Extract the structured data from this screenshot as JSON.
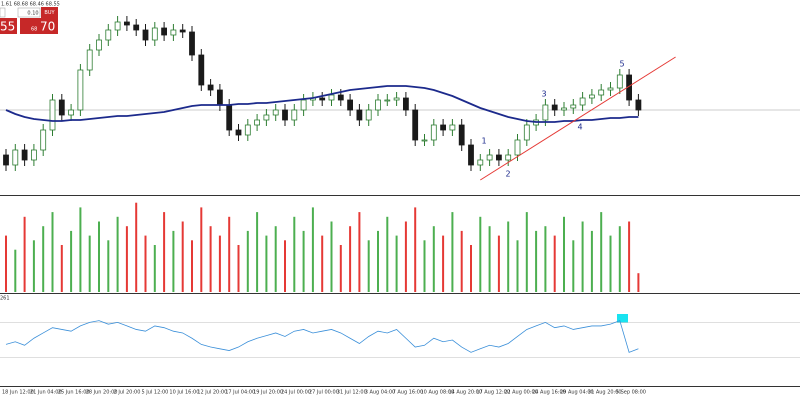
{
  "toolbar": {
    "quote": "1.61 68.68 68.46 68.55",
    "lot": "0.10",
    "buy": "BUY",
    "sell_price": "55",
    "buy_prefix": "68",
    "buy_price": "70"
  },
  "chart_data": [
    {
      "type": "candlestick",
      "categories": [
        "18 Jun 12:00",
        null,
        null,
        "21 Jun 04:00",
        null,
        null,
        "25 Jun 16:00",
        null,
        null,
        "28 Jun 20:00",
        null,
        null,
        "2 Jul 20:00",
        null,
        null,
        "5 Jul 12:00",
        null,
        null,
        "10 Jul 16:00",
        null,
        null,
        "12 Jul 20:00",
        null,
        null,
        "17 Jul 04:00",
        null,
        null,
        "19 Jul 20:00",
        null,
        null,
        "24 Jul 00:00",
        null,
        null,
        "27 Jul 00:00",
        null,
        null,
        "31 Jul 12:00",
        null,
        null,
        "3 Aug 04:00",
        null,
        null,
        "7 Aug 16:00",
        null,
        null,
        "10 Aug 08:00",
        null,
        null,
        "14 Aug 20:00",
        null,
        null,
        "17 Aug 12:00",
        null,
        null,
        "22 Aug 00:00",
        null,
        null,
        "24 Aug 16:00",
        null,
        null,
        "29 Aug 04:00",
        null,
        null,
        "31 Aug 20:00",
        null,
        null,
        "5 Sep 08:00",
        null,
        null
      ],
      "open": [
        68.1,
        68.0,
        68.15,
        68.05,
        68.15,
        68.35,
        68.65,
        68.5,
        68.55,
        68.95,
        69.15,
        69.25,
        69.35,
        69.43,
        69.4,
        69.35,
        69.25,
        69.37,
        69.3,
        69.35,
        69.33,
        69.1,
        68.8,
        68.75,
        68.6,
        68.35,
        68.3,
        68.4,
        68.45,
        68.5,
        68.55,
        68.45,
        68.55,
        68.65,
        68.67,
        68.65,
        68.7,
        68.65,
        68.55,
        68.45,
        68.55,
        68.65,
        68.65,
        68.67,
        68.55,
        68.25,
        68.25,
        68.4,
        68.35,
        68.4,
        68.2,
        68.0,
        68.05,
        68.1,
        68.05,
        68.1,
        68.25,
        68.4,
        68.45,
        68.6,
        68.55,
        68.57,
        68.6,
        68.67,
        68.7,
        68.75,
        68.77,
        68.9,
        68.65
      ],
      "high": [
        68.16,
        68.21,
        68.21,
        68.21,
        68.41,
        68.71,
        68.71,
        68.61,
        69.01,
        69.21,
        69.31,
        69.41,
        69.49,
        69.49,
        69.46,
        69.41,
        69.43,
        69.43,
        69.41,
        69.41,
        69.39,
        69.16,
        68.86,
        68.81,
        68.66,
        68.41,
        68.46,
        68.51,
        68.56,
        68.61,
        68.61,
        68.61,
        68.71,
        68.73,
        68.73,
        68.76,
        68.76,
        68.71,
        68.61,
        68.61,
        68.71,
        68.71,
        68.73,
        68.73,
        68.61,
        68.31,
        68.46,
        68.46,
        68.46,
        68.46,
        68.26,
        68.11,
        68.16,
        68.16,
        68.16,
        68.31,
        68.46,
        68.51,
        68.66,
        68.66,
        68.63,
        68.66,
        68.73,
        68.76,
        68.81,
        68.83,
        68.96,
        68.96,
        68.71
      ],
      "low": [
        67.94,
        67.94,
        67.99,
        67.99,
        68.09,
        68.29,
        68.44,
        68.44,
        68.49,
        68.89,
        69.09,
        69.19,
        69.29,
        69.34,
        69.29,
        69.19,
        69.19,
        69.24,
        69.24,
        69.27,
        69.04,
        68.74,
        68.69,
        68.54,
        68.29,
        68.24,
        68.24,
        68.34,
        68.39,
        68.44,
        68.39,
        68.39,
        68.49,
        68.59,
        68.59,
        68.59,
        68.59,
        68.49,
        68.39,
        68.39,
        68.49,
        68.59,
        68.59,
        68.49,
        68.19,
        68.19,
        68.19,
        68.29,
        68.29,
        68.14,
        67.94,
        67.94,
        67.99,
        67.99,
        67.99,
        68.04,
        68.19,
        68.34,
        68.39,
        68.49,
        68.49,
        68.51,
        68.54,
        68.61,
        68.64,
        68.69,
        68.71,
        68.59,
        68.49
      ],
      "close": [
        68.0,
        68.15,
        68.05,
        68.15,
        68.35,
        68.65,
        68.5,
        68.55,
        68.95,
        69.15,
        69.25,
        69.35,
        69.43,
        69.4,
        69.35,
        69.25,
        69.37,
        69.3,
        69.35,
        69.33,
        69.1,
        68.8,
        68.75,
        68.6,
        68.35,
        68.3,
        68.4,
        68.45,
        68.5,
        68.55,
        68.45,
        68.55,
        68.65,
        68.67,
        68.65,
        68.7,
        68.65,
        68.55,
        68.45,
        68.55,
        68.65,
        68.65,
        68.67,
        68.55,
        68.25,
        68.25,
        68.4,
        68.35,
        68.4,
        68.2,
        68.0,
        68.05,
        68.1,
        68.05,
        68.1,
        68.25,
        68.4,
        68.45,
        68.6,
        68.55,
        68.57,
        68.6,
        68.67,
        68.7,
        68.75,
        68.77,
        68.9,
        68.65,
        68.55
      ],
      "up_color": "#2e7d32",
      "down_color": "#1a1a1a",
      "moving_average": {
        "color": "#1c2a8c",
        "values": [
          68.55,
          68.51,
          68.48,
          68.46,
          68.45,
          68.44,
          68.44,
          68.45,
          68.45,
          68.46,
          68.47,
          68.48,
          68.49,
          68.49,
          68.5,
          68.51,
          68.52,
          68.53,
          68.55,
          68.57,
          68.59,
          68.6,
          68.6,
          68.6,
          68.6,
          68.61,
          68.61,
          68.62,
          68.62,
          68.63,
          68.64,
          68.65,
          68.66,
          68.67,
          68.69,
          68.71,
          68.73,
          68.75,
          68.76,
          68.77,
          68.78,
          68.79,
          68.79,
          68.79,
          68.78,
          68.77,
          68.75,
          68.72,
          68.69,
          68.65,
          68.61,
          68.57,
          68.54,
          68.51,
          68.48,
          68.46,
          68.44,
          68.43,
          68.43,
          68.43,
          68.44,
          68.44,
          68.45,
          68.45,
          68.46,
          68.47,
          68.47,
          68.48,
          68.48
        ]
      },
      "trendline": {
        "color": "#e53935",
        "x": [
          51,
          72
        ],
        "y": [
          67.85,
          69.08
        ]
      },
      "annotations": [
        "1",
        "2",
        "3",
        "4",
        "5"
      ],
      "price_line": 68.55,
      "ylim": [
        67.7,
        69.65
      ]
    },
    {
      "type": "bar",
      "values": [
        60,
        45,
        80,
        55,
        70,
        85,
        50,
        65,
        90,
        60,
        75,
        55,
        80,
        70,
        95,
        60,
        50,
        85,
        65,
        75,
        55,
        90,
        70,
        60,
        80,
        50,
        65,
        85,
        60,
        70,
        55,
        80,
        65,
        90,
        60,
        75,
        50,
        70,
        85,
        55,
        65,
        80,
        60,
        75,
        90,
        55,
        70,
        60,
        85,
        65,
        50,
        80,
        70,
        60,
        75,
        55,
        85,
        65,
        70,
        60,
        80,
        55,
        75,
        65,
        85,
        60,
        70,
        75,
        20
      ],
      "up_color": "#4caf50",
      "down_color": "#e53935",
      "ylim": [
        0,
        100
      ]
    },
    {
      "type": "line",
      "label": "261",
      "values": [
        45,
        48,
        44,
        52,
        58,
        64,
        62,
        60,
        66,
        70,
        72,
        68,
        70,
        66,
        62,
        60,
        66,
        64,
        60,
        58,
        52,
        45,
        42,
        40,
        38,
        42,
        48,
        52,
        55,
        58,
        54,
        60,
        62,
        58,
        60,
        62,
        58,
        52,
        46,
        54,
        60,
        58,
        62,
        52,
        42,
        44,
        52,
        48,
        50,
        42,
        36,
        40,
        44,
        42,
        46,
        54,
        62,
        66,
        70,
        64,
        66,
        62,
        64,
        66,
        66,
        68,
        72,
        36,
        40
      ],
      "color": "#3a8fd9",
      "levels": [
        70,
        30
      ],
      "ylim": [
        0,
        100
      ]
    }
  ]
}
